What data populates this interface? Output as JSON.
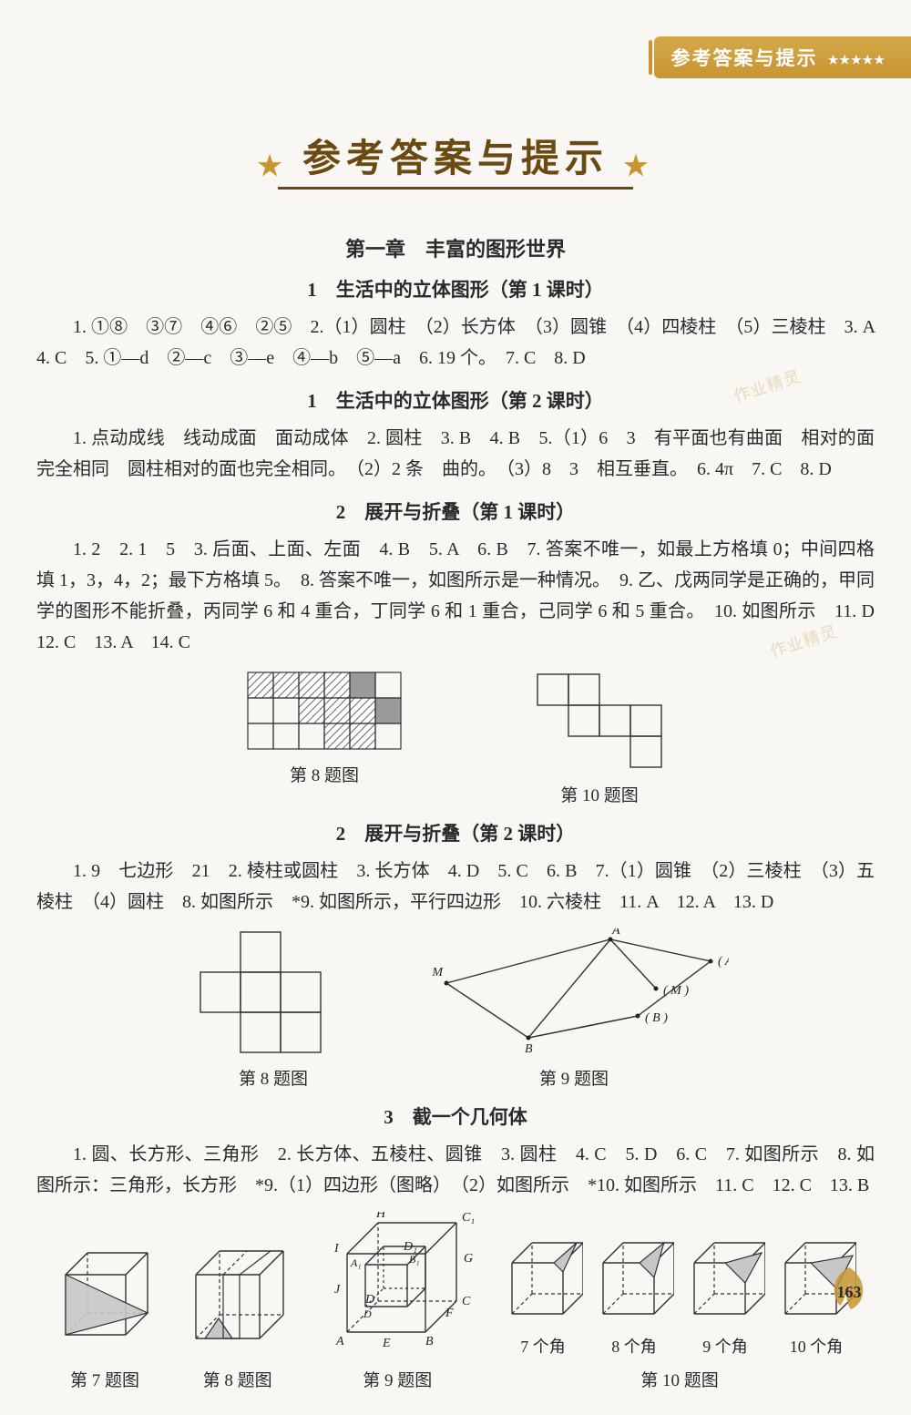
{
  "tab": {
    "label": "参考答案与提示",
    "stars": "★★★★★"
  },
  "main_title": "参考答案与提示",
  "chapter": "第一章　丰富的图形世界",
  "sec1": {
    "head": "1　生活中的立体图形（第 1 课时）",
    "body": "1. ①⑧　③⑦　④⑥　②⑤　2.（1）圆柱　（2）长方体　（3）圆锥　（4）四棱柱　（5）三棱柱　3. A　4. C　5. ①—d　②—c　③—e　④—b　⑤—a　6. 19 个。　7. C　8. D"
  },
  "sec2": {
    "head": "1　生活中的立体图形（第 2 课时）",
    "body": "1. 点动成线　线动成面　面动成体　2. 圆柱　3. B　4. B　5.（1）6　3　有平面也有曲面　相对的面完全相同　圆柱相对的面也完全相同。　（2）2 条　曲的。　（3）8　3　相互垂直。　6. 4π　7. C　8. D"
  },
  "sec3": {
    "head": "2　展开与折叠（第 1 课时）",
    "body": "1. 2　2. 1　5　3. 后面、上面、左面　4. B　5. A　6. B　7. 答案不唯一，如最上方格填 0；中间四格填 1，3，4，2；最下方格填 5。　8. 答案不唯一，如图所示是一种情况。　9. 乙、戊两同学是正确的，甲同学的图形不能折叠，丙同学 6 和 4 重合，丁同学 6 和 1 重合，己同学 6 和 5 重合。　10. 如图所示　11. D　12. C　13. A　14. C",
    "fig8_caption": "第 8 题图",
    "fig10_caption": "第 10 题图",
    "fig8": {
      "cols": 6,
      "rows": 3,
      "cell": 28,
      "hatch_cells": [
        [
          0,
          0
        ],
        [
          0,
          1
        ],
        [
          0,
          2
        ],
        [
          0,
          3
        ],
        [
          1,
          2
        ],
        [
          1,
          3
        ],
        [
          1,
          4
        ],
        [
          2,
          3
        ],
        [
          2,
          4
        ]
      ],
      "fill_cells": [
        [
          0,
          4
        ],
        [
          1,
          5
        ]
      ],
      "stroke": "#333",
      "hatch": "#666",
      "fill": "#9a9a9a"
    },
    "fig10": {
      "cell": 34,
      "cells": [
        [
          0,
          0
        ],
        [
          0,
          1
        ],
        [
          1,
          1
        ],
        [
          1,
          2
        ],
        [
          1,
          3
        ],
        [
          2,
          3
        ]
      ],
      "stroke": "#333"
    }
  },
  "sec4": {
    "head": "2　展开与折叠（第 2 课时）",
    "body": "1. 9　七边形　21　2. 棱柱或圆柱　3. 长方体　4. D　5. C　6. B　7.（1）圆锥　（2）三棱柱　（3）五棱柱　（4）圆柱　8. 如图所示　*9. 如图所示，平行四边形　10. 六棱柱　11. A　12. A　13. D",
    "fig8_caption": "第 8 题图",
    "fig9_caption": "第 9 题图",
    "fig8": {
      "cell": 44,
      "stroke": "#333",
      "squares": [
        [
          0,
          1
        ],
        [
          1,
          0
        ],
        [
          1,
          1
        ],
        [
          1,
          2
        ],
        [
          2,
          1
        ],
        [
          2,
          2
        ]
      ]
    },
    "fig9": {
      "labels": {
        "A": "A",
        "A2": "( A )",
        "M": "M",
        "M2": "( M )",
        "B": "B",
        "B2": "( B )"
      },
      "stroke": "#333"
    }
  },
  "sec5": {
    "head": "3　截一个几何体",
    "body": "1. 圆、长方形、三角形　2. 长方体、五棱柱、圆锥　3. 圆柱　4. C　5. D　6. C　7. 如图所示　8. 如图所示：三角形，长方形　*9.（1）四边形（图略）　（2）如图所示　*10. 如图所示　11. C　12. C　13. B",
    "fig7_caption": "第 7 题图",
    "fig8_caption": "第 8 题图",
    "fig9_caption": "第 9 题图",
    "fig10_caption": "第 10 题图",
    "fig9_labels": {
      "A": "A",
      "B": "B",
      "C": "C",
      "D": "D",
      "E": "E",
      "F": "F",
      "G": "G",
      "H": "H",
      "I": "I",
      "J": "J",
      "A1": "A₁",
      "B1": "B₁",
      "C1": "C₁",
      "D1": "D₁"
    },
    "corners": [
      {
        "label": "7 个角"
      },
      {
        "label": "8 个角"
      },
      {
        "label": "9 个角"
      },
      {
        "label": "10 个角"
      }
    ],
    "cube_stroke": "#333",
    "cube_fill": "#c7c7c7"
  },
  "page_number": "163",
  "watermark": "作业精灵"
}
